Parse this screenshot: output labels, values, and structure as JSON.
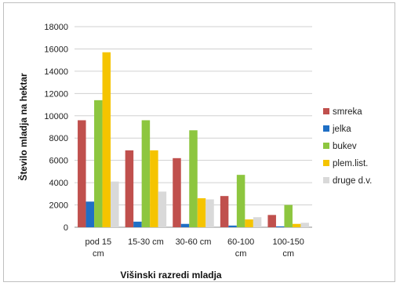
{
  "chart_data": {
    "type": "bar",
    "title": "",
    "xlabel": "Višinski razredi mladja",
    "ylabel": "Število mladja na hektar",
    "ylim": [
      0,
      18000
    ],
    "yticks": [
      0,
      2000,
      4000,
      6000,
      8000,
      10000,
      12000,
      14000,
      16000,
      18000
    ],
    "grid": true,
    "legend_position": "right",
    "categories": [
      [
        "pod 15",
        "cm"
      ],
      [
        "15-30 cm"
      ],
      [
        "30-60 cm"
      ],
      [
        "60-100",
        "cm"
      ],
      [
        "100-150",
        "cm"
      ]
    ],
    "series": [
      {
        "name": "smreka",
        "color": "#c0504d",
        "values": [
          9600,
          6900,
          6200,
          2800,
          1100
        ]
      },
      {
        "name": "jelka",
        "color": "#1f6fc5",
        "values": [
          2300,
          500,
          300,
          150,
          80
        ]
      },
      {
        "name": "bukev",
        "color": "#8dc63f",
        "values": [
          11400,
          9600,
          8700,
          4700,
          2000
        ]
      },
      {
        "name": "plem.list.",
        "color": "#f5c400",
        "values": [
          15700,
          6900,
          2600,
          700,
          300
        ]
      },
      {
        "name": "druge d.v.",
        "color": "#d9d9d9",
        "values": [
          4100,
          3200,
          2500,
          900,
          400
        ]
      }
    ]
  }
}
